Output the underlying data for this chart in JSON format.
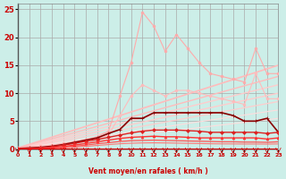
{
  "xlabel": "Vent moyen/en rafales ( km/h )",
  "xlim": [
    0,
    23
  ],
  "ylim": [
    0,
    26
  ],
  "yticks": [
    0,
    5,
    10,
    15,
    20,
    25
  ],
  "xticks": [
    0,
    1,
    2,
    3,
    4,
    5,
    6,
    7,
    8,
    9,
    10,
    11,
    12,
    13,
    14,
    15,
    16,
    17,
    18,
    19,
    20,
    21,
    22,
    23
  ],
  "bg_color": "#cceee8",
  "grid_color": "#aaaaaa",
  "lines": [
    {
      "x": [
        0,
        1,
        2,
        3,
        4,
        5,
        6,
        7,
        8,
        9,
        10,
        11,
        12,
        13,
        14,
        15,
        16,
        17,
        18,
        19,
        20,
        21,
        22,
        23
      ],
      "y": [
        0.3,
        0.4,
        0.5,
        0.7,
        1.0,
        1.3,
        1.7,
        2.2,
        3.2,
        9.5,
        15.5,
        24.5,
        22.0,
        17.5,
        20.5,
        18.0,
        15.5,
        13.5,
        13.0,
        12.5,
        12.0,
        18.0,
        13.5,
        13.5
      ],
      "color": "#ffaaaa",
      "linewidth": 0.8,
      "marker": "o",
      "markersize": 2.0,
      "zorder": 3
    },
    {
      "x": [
        0,
        1,
        2,
        3,
        4,
        5,
        6,
        7,
        8,
        9,
        10,
        11,
        12,
        13,
        14,
        15,
        16,
        17,
        18,
        19,
        20,
        21,
        22,
        23
      ],
      "y": [
        0.2,
        0.3,
        0.4,
        0.6,
        0.8,
        1.1,
        1.4,
        1.8,
        2.5,
        6.0,
        9.5,
        11.5,
        10.5,
        9.5,
        10.5,
        10.5,
        10.0,
        9.5,
        9.0,
        8.5,
        8.0,
        13.5,
        9.0,
        9.0
      ],
      "color": "#ffbbbb",
      "linewidth": 0.8,
      "marker": "o",
      "markersize": 2.0,
      "zorder": 3
    },
    {
      "x": [
        0,
        23
      ],
      "y": [
        0.2,
        15.0
      ],
      "color": "#ffbbbb",
      "linewidth": 1.2,
      "marker": null,
      "markersize": 0,
      "zorder": 2
    },
    {
      "x": [
        0,
        23
      ],
      "y": [
        0.15,
        13.0
      ],
      "color": "#ffbbbb",
      "linewidth": 1.0,
      "marker": null,
      "markersize": 0,
      "zorder": 2
    },
    {
      "x": [
        0,
        23
      ],
      "y": [
        0.1,
        11.5
      ],
      "color": "#ffcccc",
      "linewidth": 1.0,
      "marker": null,
      "markersize": 0,
      "zorder": 2
    },
    {
      "x": [
        0,
        23
      ],
      "y": [
        0.08,
        10.0
      ],
      "color": "#ffcccc",
      "linewidth": 1.0,
      "marker": null,
      "markersize": 0,
      "zorder": 2
    },
    {
      "x": [
        0,
        23
      ],
      "y": [
        0.06,
        8.5
      ],
      "color": "#ffcccc",
      "linewidth": 0.9,
      "marker": null,
      "markersize": 0,
      "zorder": 2
    },
    {
      "x": [
        0,
        23
      ],
      "y": [
        0.05,
        7.0
      ],
      "color": "#ffdddd",
      "linewidth": 0.8,
      "marker": null,
      "markersize": 0,
      "zorder": 2
    },
    {
      "x": [
        0,
        23
      ],
      "y": [
        0.04,
        5.5
      ],
      "color": "#ffdddd",
      "linewidth": 0.8,
      "marker": null,
      "markersize": 0,
      "zorder": 2
    },
    {
      "x": [
        0,
        1,
        2,
        3,
        4,
        5,
        6,
        7,
        8,
        9,
        10,
        11,
        12,
        13,
        14,
        15,
        16,
        17,
        18,
        19,
        20,
        21,
        22,
        23
      ],
      "y": [
        0.1,
        0.2,
        0.3,
        0.5,
        0.8,
        1.2,
        1.6,
        2.0,
        2.8,
        3.5,
        5.5,
        5.5,
        6.5,
        6.5,
        6.5,
        6.5,
        6.5,
        6.5,
        6.5,
        6.0,
        5.0,
        5.0,
        5.5,
        3.0
      ],
      "color": "#880000",
      "linewidth": 1.2,
      "marker": "+",
      "markersize": 3.5,
      "zorder": 4
    },
    {
      "x": [
        0,
        1,
        2,
        3,
        4,
        5,
        6,
        7,
        8,
        9,
        10,
        11,
        12,
        13,
        14,
        15,
        16,
        17,
        18,
        19,
        20,
        21,
        22,
        23
      ],
      "y": [
        0.05,
        0.1,
        0.2,
        0.4,
        0.7,
        1.0,
        1.4,
        1.7,
        2.1,
        2.5,
        2.9,
        3.2,
        3.4,
        3.4,
        3.4,
        3.3,
        3.2,
        3.0,
        3.0,
        3.0,
        3.0,
        3.0,
        2.8,
        3.0
      ],
      "color": "#dd2222",
      "linewidth": 1.0,
      "marker": "D",
      "markersize": 2.0,
      "zorder": 4
    },
    {
      "x": [
        0,
        1,
        2,
        3,
        4,
        5,
        6,
        7,
        8,
        9,
        10,
        11,
        12,
        13,
        14,
        15,
        16,
        17,
        18,
        19,
        20,
        21,
        22,
        23
      ],
      "y": [
        0.03,
        0.07,
        0.13,
        0.25,
        0.45,
        0.7,
        1.0,
        1.3,
        1.6,
        1.9,
        2.1,
        2.2,
        2.3,
        2.2,
        2.2,
        2.1,
        2.0,
        2.0,
        2.0,
        2.0,
        2.0,
        2.0,
        1.8,
        2.0
      ],
      "color": "#ff3333",
      "linewidth": 1.0,
      "marker": "^",
      "markersize": 2.0,
      "zorder": 4
    },
    {
      "x": [
        0,
        1,
        2,
        3,
        4,
        5,
        6,
        7,
        8,
        9,
        10,
        11,
        12,
        13,
        14,
        15,
        16,
        17,
        18,
        19,
        20,
        21,
        22,
        23
      ],
      "y": [
        0.02,
        0.05,
        0.09,
        0.17,
        0.3,
        0.5,
        0.7,
        0.95,
        1.15,
        1.35,
        1.5,
        1.55,
        1.6,
        1.55,
        1.5,
        1.45,
        1.4,
        1.35,
        1.3,
        1.3,
        1.25,
        1.25,
        1.2,
        1.3
      ],
      "color": "#ff5555",
      "linewidth": 0.9,
      "marker": null,
      "markersize": 0,
      "zorder": 3
    },
    {
      "x": [
        0,
        1,
        2,
        3,
        4,
        5,
        6,
        7,
        8,
        9,
        10,
        11,
        12,
        13,
        14,
        15,
        16,
        17,
        18,
        19,
        20,
        21,
        22,
        23
      ],
      "y": [
        0.01,
        0.03,
        0.06,
        0.11,
        0.2,
        0.33,
        0.48,
        0.64,
        0.8,
        0.95,
        1.05,
        1.1,
        1.12,
        1.1,
        1.07,
        1.03,
        0.99,
        0.95,
        0.93,
        0.92,
        0.9,
        0.9,
        0.88,
        0.92
      ],
      "color": "#ff7777",
      "linewidth": 0.8,
      "marker": null,
      "markersize": 0,
      "zorder": 3
    }
  ]
}
